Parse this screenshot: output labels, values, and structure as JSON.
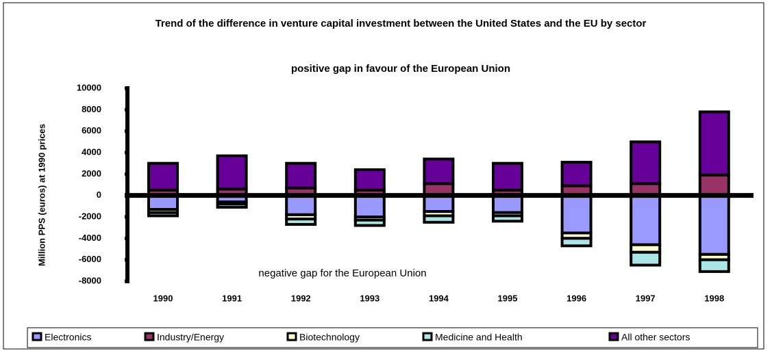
{
  "chart_data": {
    "type": "stacked-bar",
    "title": "Trend of the difference in venture capital investment between the United States and the EU by sector",
    "annotations": [
      "positive gap in favour of the European Union",
      "negative gap for the European Union"
    ],
    "y_label": "Million PPS (euros) at 1990 prices",
    "categories": [
      "1990",
      "1991",
      "1992",
      "1993",
      "1994",
      "1995",
      "1996",
      "1997",
      "1998"
    ],
    "series": [
      {
        "name": "Electronics",
        "color": "#9999ff",
        "values": [
          -1300,
          -600,
          -1800,
          -2000,
          -1500,
          -1600,
          -3500,
          -4600,
          -5500
        ]
      },
      {
        "name": "Industry/Energy",
        "color": "#993366",
        "values": [
          500,
          600,
          700,
          500,
          1100,
          500,
          900,
          1100,
          1900
        ]
      },
      {
        "name": "Biotechnology",
        "color": "#ffffcc",
        "values": [
          -300,
          -200,
          -400,
          -300,
          -400,
          -300,
          -500,
          -700,
          -500
        ]
      },
      {
        "name": "Medicine and Health",
        "color": "#aae6e6",
        "values": [
          -300,
          -300,
          -500,
          -500,
          -600,
          -500,
          -700,
          -1200,
          -1100
        ]
      },
      {
        "name": "All other sectors",
        "color": "#660099",
        "values": [
          2500,
          3100,
          2300,
          1900,
          2300,
          2500,
          2200,
          3900,
          5900
        ]
      }
    ],
    "ylim": [
      -8000,
      10000
    ],
    "yticks": [
      -8000,
      -6000,
      -4000,
      -2000,
      0,
      2000,
      4000,
      6000,
      8000,
      10000
    ],
    "grid": false,
    "legend": "bottom"
  }
}
